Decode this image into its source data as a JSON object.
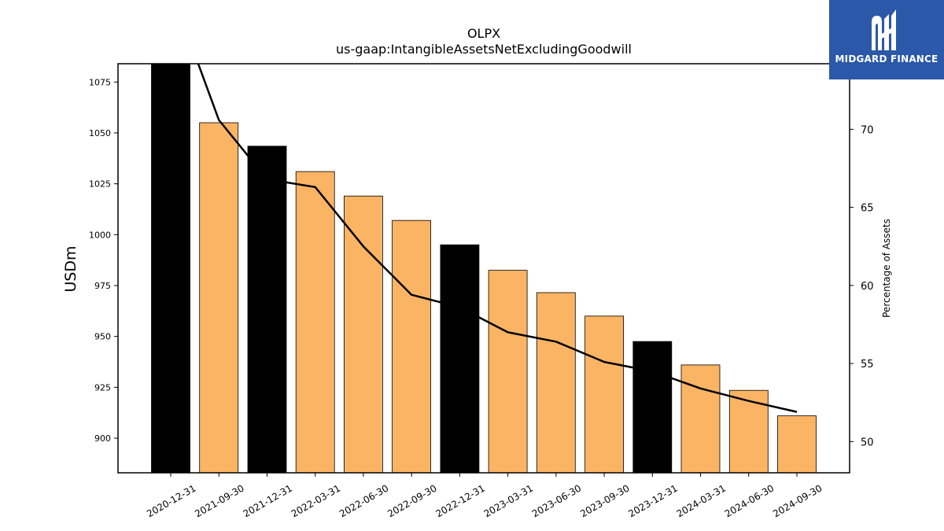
{
  "chart_data": {
    "type": "bar",
    "title": "OLPX",
    "subtitle": "us-gaap:IntangibleAssetsNetExcludingGoodwill",
    "ylabel": "USDm",
    "y2label": "Percentage of Assets",
    "ylim": [
      883,
      1084
    ],
    "y2lim": [
      48,
      74.2
    ],
    "yticks": [
      900,
      925,
      950,
      975,
      1000,
      1025,
      1050,
      1075
    ],
    "y2ticks": [
      50,
      55,
      60,
      65,
      70
    ],
    "categories": [
      "2020-12-31",
      "2021-09-30",
      "2021-12-31",
      "2022-03-31",
      "2022-06-30",
      "2022-09-30",
      "2022-12-31",
      "2023-03-31",
      "2023-06-30",
      "2023-09-30",
      "2023-12-31",
      "2024-03-31",
      "2024-06-30",
      "2024-09-30"
    ],
    "series": [
      {
        "type": "bar",
        "values": [
          1090,
          1055,
          1043.5,
          1031,
          1019,
          1007,
          995,
          982.5,
          971.5,
          960,
          947.5,
          936,
          923.5,
          911
        ],
        "colors": [
          "#000000",
          "#fbb464",
          "#000000",
          "#fbb464",
          "#fbb464",
          "#fbb464",
          "#000000",
          "#fbb464",
          "#fbb464",
          "#fbb464",
          "#000000",
          "#fbb464",
          "#fbb464",
          "#fbb464"
        ]
      },
      {
        "type": "line",
        "axis": "right",
        "values": [
          79,
          70.6,
          66.8,
          66.3,
          62.5,
          59.4,
          58.6,
          57.0,
          56.4,
          55.1,
          54.5,
          53.4,
          52.6,
          51.9
        ],
        "color": "#000000"
      }
    ],
    "grid": false,
    "legend": "none"
  },
  "logo": {
    "text": "MIDGARD FINANCE",
    "background": "#2b58a8"
  }
}
